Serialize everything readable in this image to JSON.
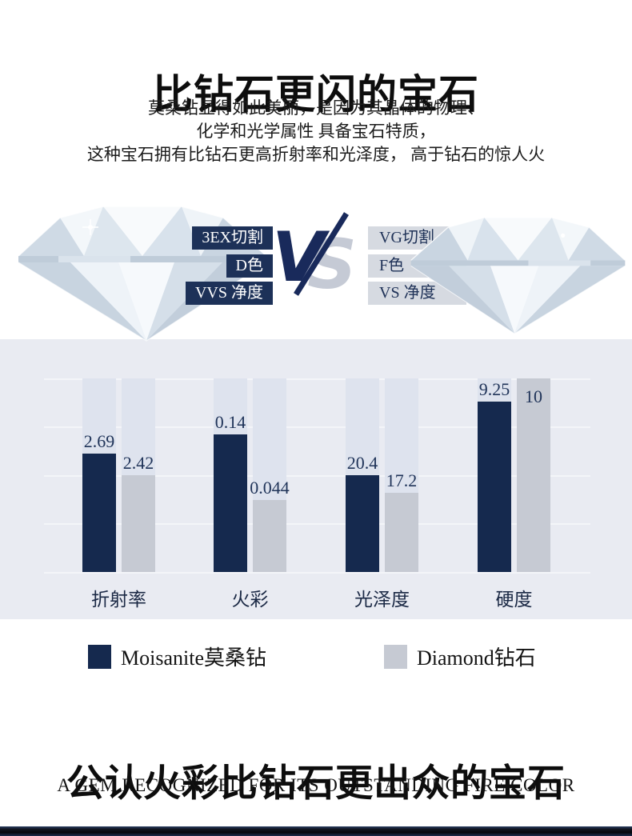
{
  "header": {
    "title": "比钻石更闪的宝石",
    "subtitle_lines": [
      "莫桑钻显得如此美丽，是因为其晶体的物理、",
      "化学和光学属性 具备宝石特质，",
      "这种宝石拥有比钻石更高折射率和光泽度， 高于钻石的惊人火"
    ]
  },
  "versus": {
    "vs": {
      "v": "V",
      "s": "S"
    },
    "left_labels": [
      "3EX切割",
      "D色",
      "VVS 净度"
    ],
    "right_labels": [
      "VG切割",
      "F色",
      "VS 净度"
    ]
  },
  "chart_data": {
    "type": "bar",
    "categories": [
      "折射率",
      "火彩",
      "光泽度",
      "硬度"
    ],
    "series": [
      {
        "name": "Moisanite莫桑钻",
        "color": "#15294e",
        "values": [
          2.69,
          0.14,
          20.4,
          9.25
        ],
        "value_labels": [
          "2.69",
          "0.14",
          "20.4",
          "9.25"
        ],
        "display_height_pct": [
          61,
          71,
          50,
          88
        ]
      },
      {
        "name": "Diamond钻石",
        "color": "#c6cad3",
        "values": [
          2.42,
          0.044,
          17.2,
          10
        ],
        "value_labels": [
          "2.42",
          "0.044",
          "17.2",
          "10"
        ],
        "display_height_pct": [
          50,
          37,
          41,
          100
        ]
      }
    ],
    "title": "",
    "xlabel": "",
    "ylabel": "",
    "grid": true,
    "gridline_count": 5,
    "background": "#e9ebf2",
    "track_color": "#dee3ee",
    "value_label_color": "#203459",
    "legend_position": "bottom",
    "note": "bar heights are stylized per category; printed labels show the raw values"
  },
  "legend": {
    "items": [
      {
        "label": "Moisanite莫桑钻",
        "color": "#15294e"
      },
      {
        "label": "Diamond钻石",
        "color": "#c6cad3"
      }
    ]
  },
  "footer": {
    "title": "公认火彩比钻石更出众的宝石",
    "subtitle": "A GEM RECOGNIZED FOR ITS OUTSTANDING FIRE COLOR"
  }
}
